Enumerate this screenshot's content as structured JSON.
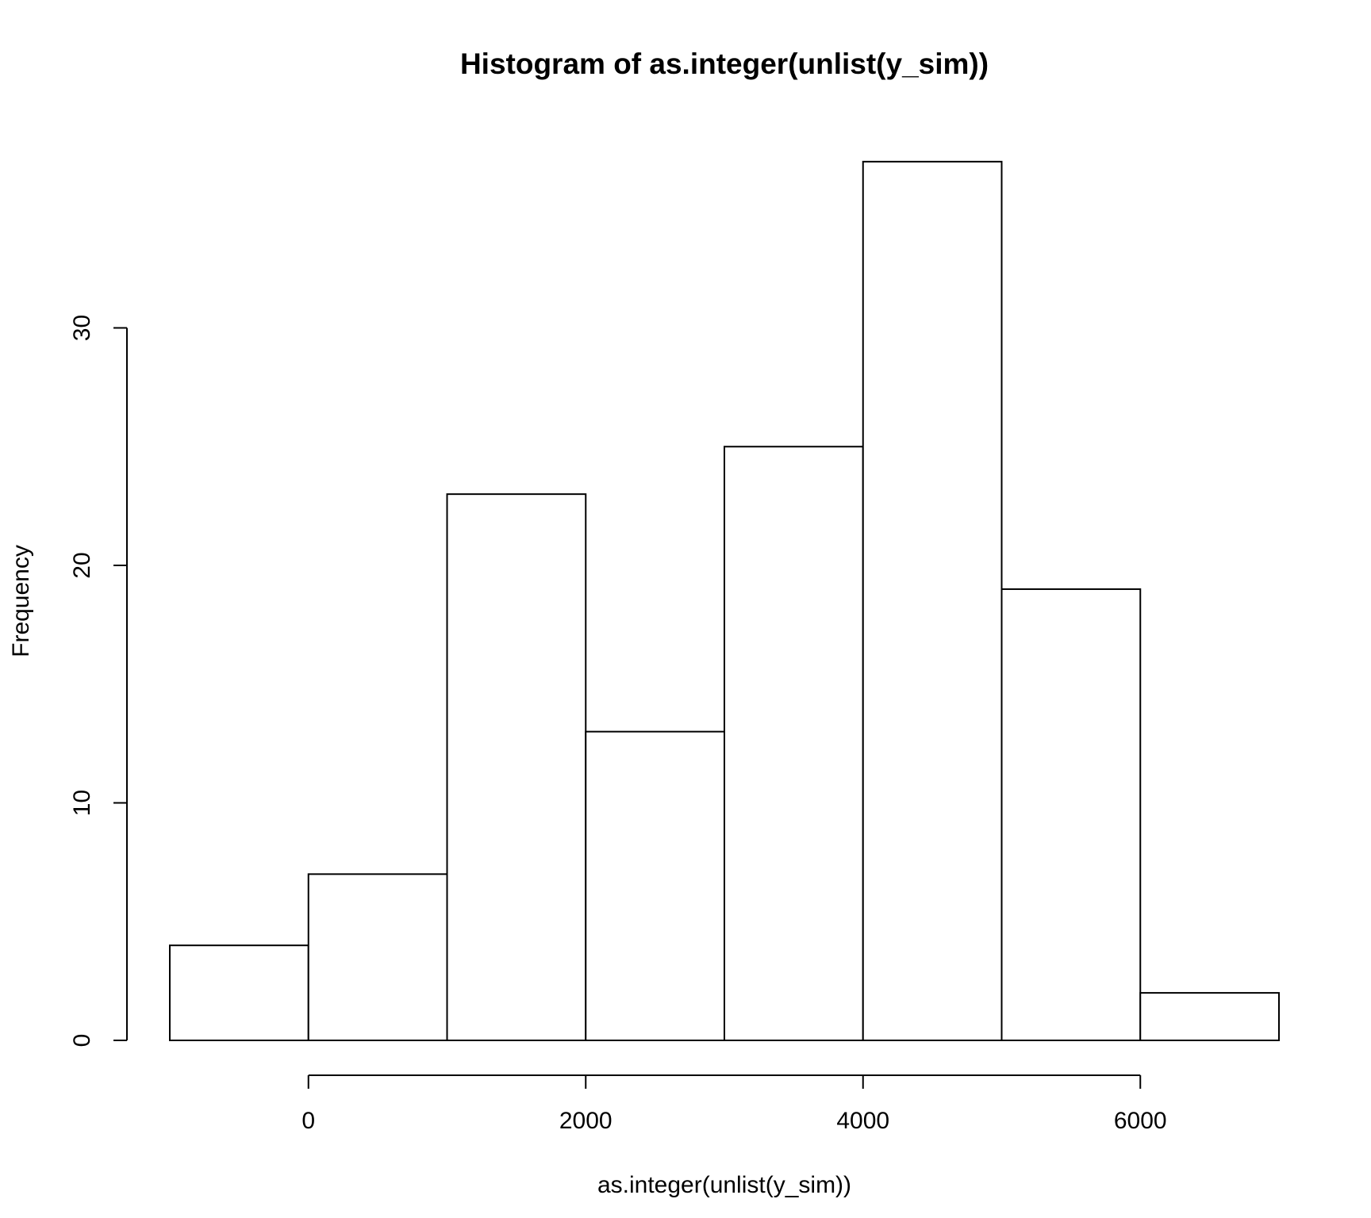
{
  "chart_data": {
    "type": "bar",
    "histogram": true,
    "title": "Histogram of as.integer(unlist(y_sim))",
    "xlabel": "as.integer(unlist(y_sim))",
    "ylabel": "Frequency",
    "bins": [
      {
        "start": -1000,
        "end": 0,
        "count": 4
      },
      {
        "start": 0,
        "end": 1000,
        "count": 7
      },
      {
        "start": 1000,
        "end": 2000,
        "count": 23
      },
      {
        "start": 2000,
        "end": 3000,
        "count": 13
      },
      {
        "start": 3000,
        "end": 4000,
        "count": 25
      },
      {
        "start": 4000,
        "end": 5000,
        "count": 37
      },
      {
        "start": 5000,
        "end": 6000,
        "count": 19
      },
      {
        "start": 6000,
        "end": 7000,
        "count": 2
      }
    ],
    "xlim": [
      -1000,
      7000
    ],
    "ylim": [
      0,
      37
    ],
    "x_ticks": [
      0,
      2000,
      4000,
      6000
    ],
    "x_tick_labels": [
      "0",
      "2000",
      "4000",
      "6000"
    ],
    "y_ticks": [
      0,
      10,
      20,
      30
    ],
    "y_tick_labels": [
      "0",
      "10",
      "20",
      "30"
    ],
    "grid": false,
    "colors": {
      "bar_fill": "#ffffff",
      "bar_stroke": "#000000",
      "axis": "#000000",
      "text": "#000000"
    }
  }
}
